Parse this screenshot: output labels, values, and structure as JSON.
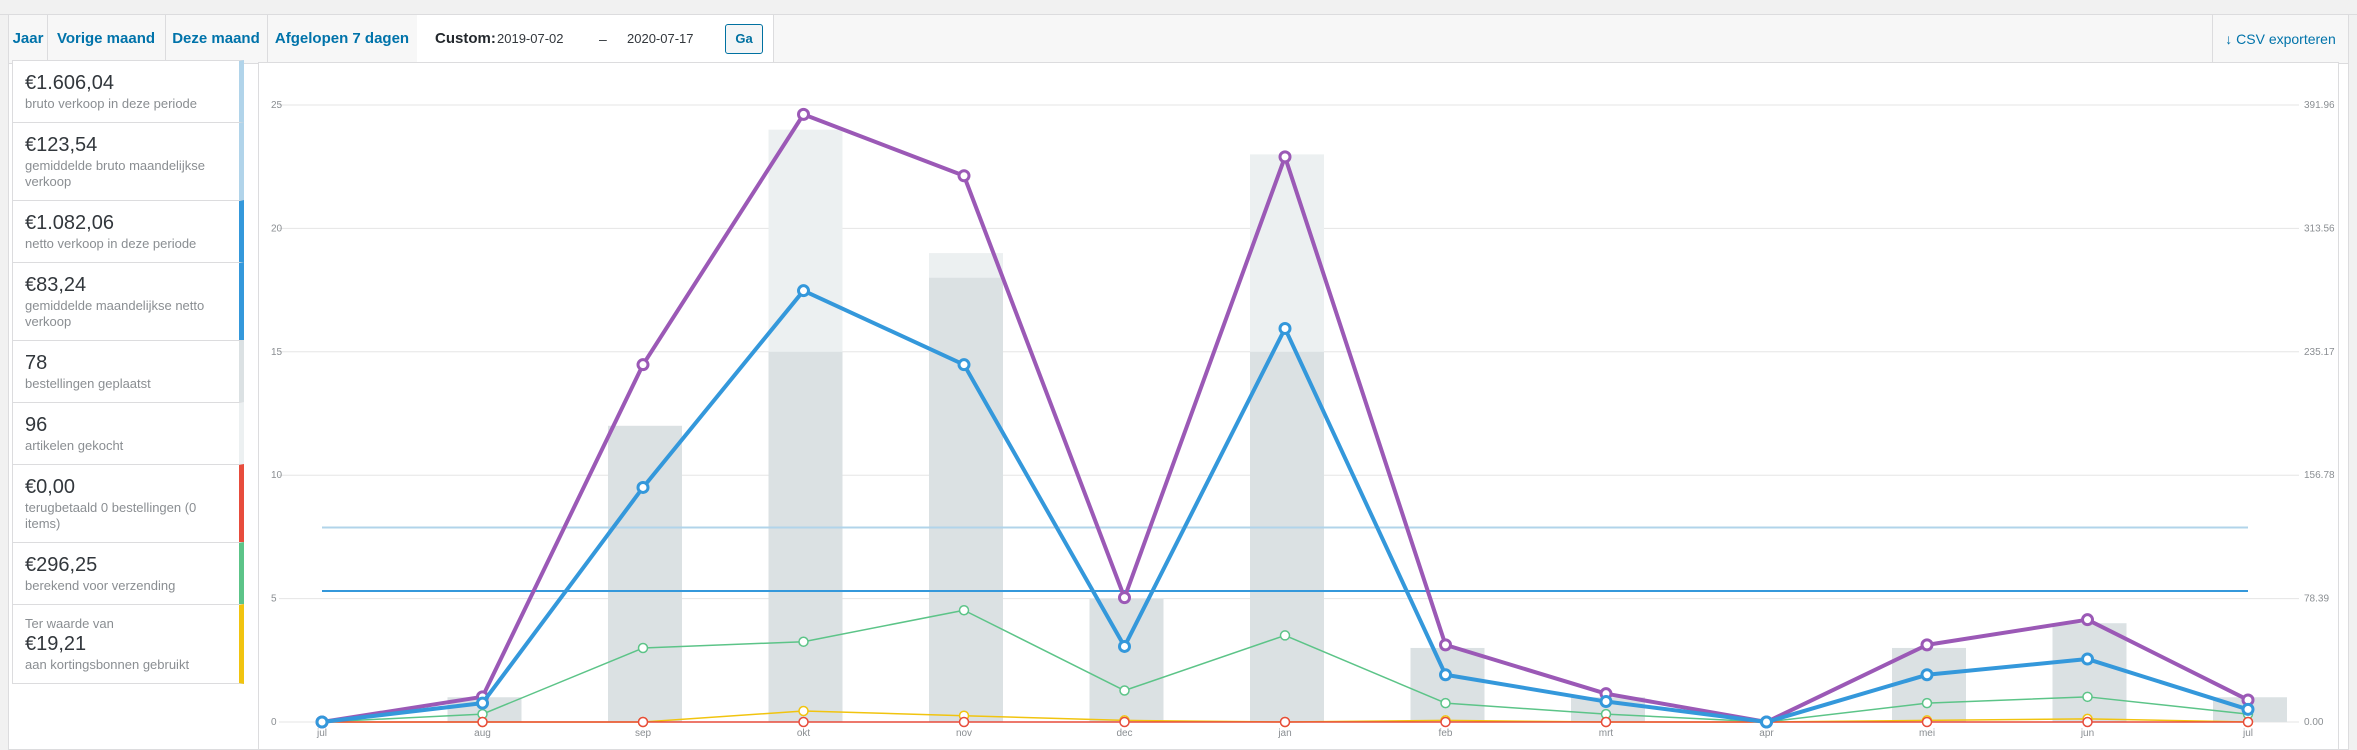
{
  "toolbar": {
    "ranges": [
      {
        "label": "Jaar"
      },
      {
        "label": "Vorige maand"
      },
      {
        "label": "Deze maand"
      },
      {
        "label": "Afgelopen 7 dagen"
      }
    ],
    "custom_label": "Custom:",
    "start_date": "2019-07-02",
    "date_separator": "–",
    "end_date": "2020-07-17",
    "go_label": "Ga",
    "export_label": "CSV exporteren",
    "export_icon": "download-arrow-icon"
  },
  "legend": [
    {
      "value": "€1.606,04",
      "desc": "bruto verkoop in deze periode",
      "color": "#b1d4ea"
    },
    {
      "value": "€123,54",
      "desc": "gemiddelde bruto maandelijkse verkoop",
      "color": "#b1d4ea"
    },
    {
      "value": "€1.082,06",
      "desc": "netto verkoop in deze periode",
      "color": "#3498db"
    },
    {
      "value": "€83,24",
      "desc": "gemiddelde maandelijkse netto verkoop",
      "color": "#3498db"
    },
    {
      "value": "78",
      "desc": "bestellingen geplaatst",
      "color": "#dbe1e3"
    },
    {
      "value": "96",
      "desc": "artikelen gekocht",
      "color": "#ecf0f1"
    },
    {
      "value": "€0,00",
      "desc": "terugbetaald 0 bestellingen (0 items)",
      "color": "#e74c3c"
    },
    {
      "value": "€296,25",
      "desc": "berekend voor verzending",
      "color": "#5cc488"
    },
    {
      "prefix": "Ter waarde van",
      "value": "€19,21",
      "desc": "aan kortingsbonnen gebruikt",
      "color": "#f1c40f"
    }
  ],
  "chart_data": {
    "type": "bar",
    "categories": [
      "jul",
      "aug",
      "sep",
      "okt",
      "nov",
      "dec",
      "jan",
      "feb",
      "mrt",
      "apr",
      "mei",
      "jun",
      "jul"
    ],
    "y_left": {
      "ticks": [
        "0",
        "5",
        "10",
        "15",
        "20",
        "25"
      ],
      "range": [
        0,
        25
      ]
    },
    "y_right": {
      "ticks": [
        "0.00",
        "78.39",
        "156.78",
        "235.17",
        "313.56",
        "391.96"
      ],
      "range": [
        0,
        391.96
      ]
    },
    "grid": true,
    "series": [
      {
        "kind": "bar",
        "axis": "left",
        "color": "#ecf0f1",
        "values": [
          0,
          1,
          12,
          24,
          19,
          5,
          23,
          3,
          1,
          0,
          3,
          4,
          1
        ]
      },
      {
        "kind": "bar",
        "axis": "left",
        "color": "#dbe1e3",
        "values": [
          0,
          1,
          12,
          15,
          18,
          5,
          15,
          3,
          1,
          0,
          3,
          4,
          1
        ]
      },
      {
        "kind": "hline",
        "axis": "right",
        "color": "#b1d4ea",
        "value": 123.54
      },
      {
        "kind": "hline",
        "axis": "right",
        "color": "#3498db",
        "value": 83.24
      },
      {
        "kind": "line",
        "axis": "right",
        "color": "#9b59b6",
        "width": 4,
        "values": [
          0,
          16,
          227,
          386,
          347,
          79,
          359,
          49,
          18,
          0,
          49,
          65,
          14
        ]
      },
      {
        "kind": "line",
        "axis": "right",
        "color": "#3498db",
        "width": 4,
        "values": [
          0,
          12,
          149,
          274,
          227,
          48,
          250,
          30,
          13,
          0,
          30,
          40,
          8
        ]
      },
      {
        "kind": "line",
        "axis": "right",
        "color": "#5cc488",
        "width": 1.5,
        "values": [
          0,
          5,
          47,
          51,
          71,
          20,
          55,
          12,
          5,
          0,
          12,
          16,
          5
        ]
      },
      {
        "kind": "line",
        "axis": "right",
        "color": "#f1c40f",
        "width": 1.5,
        "values": [
          0,
          0,
          0,
          7,
          4,
          1,
          0,
          1,
          0,
          0,
          1,
          2,
          0
        ]
      },
      {
        "kind": "line",
        "axis": "right",
        "color": "#e74c3c",
        "width": 1.5,
        "values": [
          0,
          0,
          0,
          0,
          0,
          0,
          0,
          0,
          0,
          0,
          0,
          0,
          0
        ]
      }
    ]
  }
}
